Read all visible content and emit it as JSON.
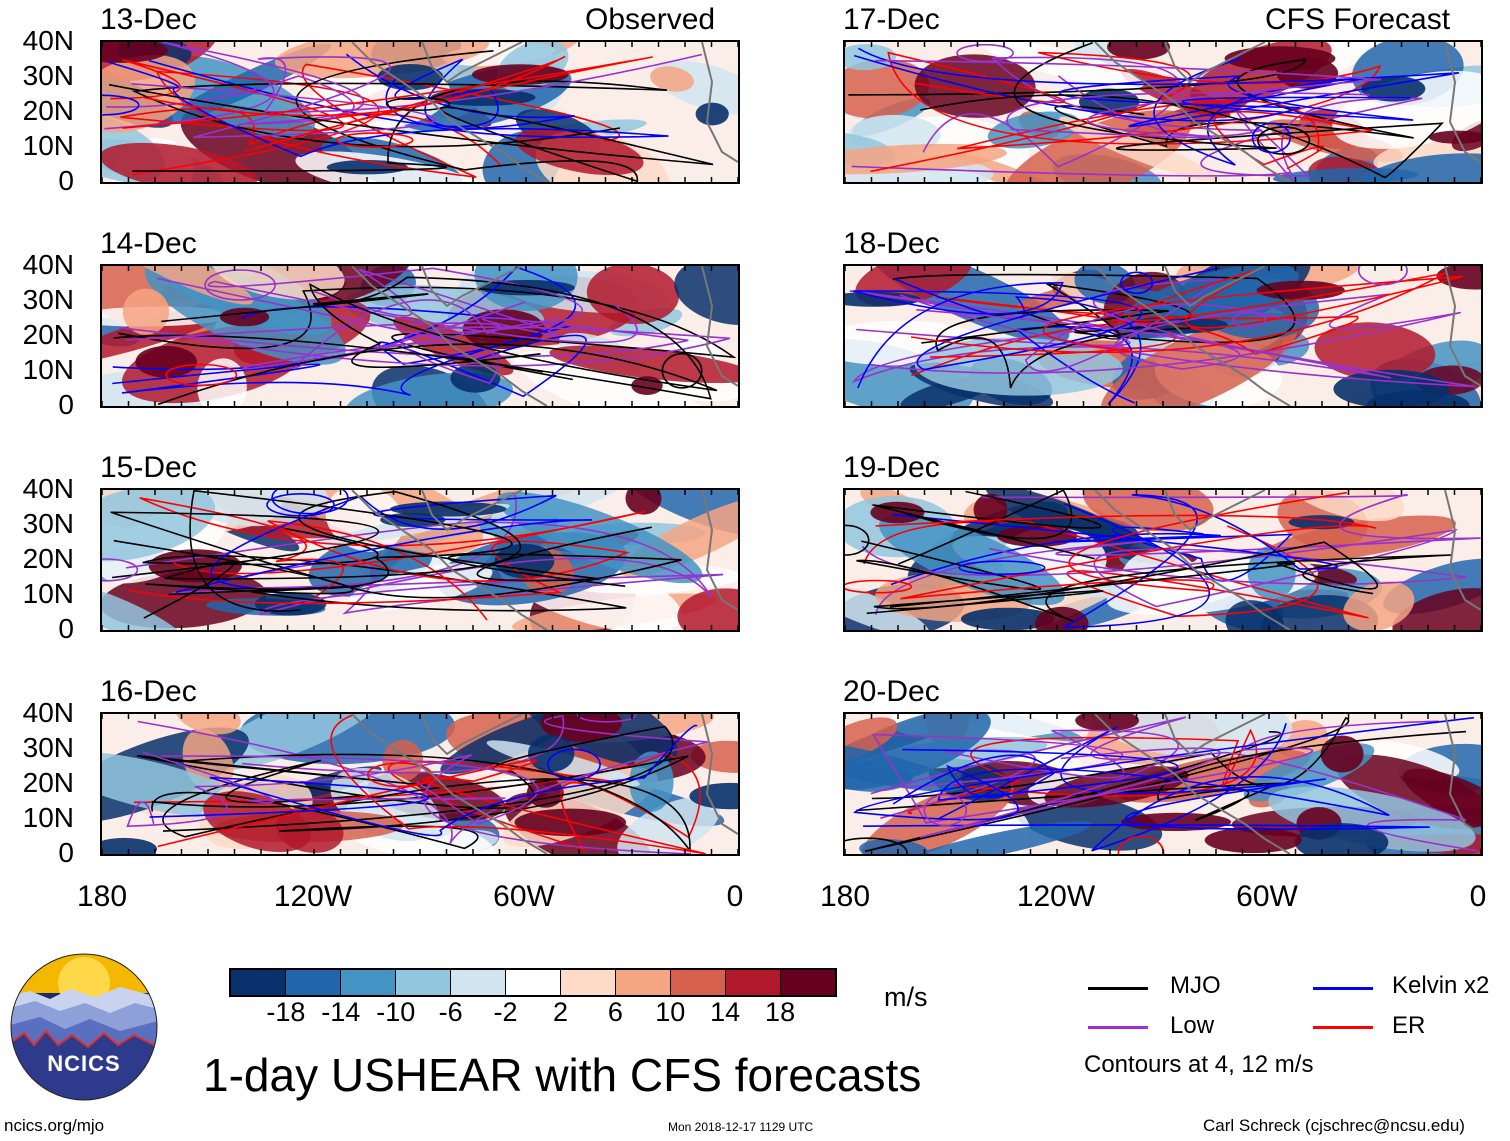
{
  "left_header_right": "Observed",
  "right_header_right": "CFS Forecast",
  "panels_left": [
    {
      "date": "13-Dec"
    },
    {
      "date": "14-Dec"
    },
    {
      "date": "15-Dec"
    },
    {
      "date": "16-Dec"
    }
  ],
  "panels_right": [
    {
      "date": "17-Dec"
    },
    {
      "date": "18-Dec"
    },
    {
      "date": "19-Dec"
    },
    {
      "date": "20-Dec"
    }
  ],
  "lat_labels": [
    "40N",
    "30N",
    "20N",
    "10N",
    "0"
  ],
  "lon_labels": [
    "180",
    "120W",
    "60W",
    "0"
  ],
  "colorbar": {
    "colors": [
      "#08306b",
      "#2166ac",
      "#4393c3",
      "#92c5de",
      "#d1e5f0",
      "#ffffff",
      "#fddbc7",
      "#f4a582",
      "#d6604d",
      "#b2182b",
      "#67001f"
    ],
    "labels": [
      "-18",
      "-14",
      "-10",
      "-6",
      "-2",
      "2",
      "6",
      "10",
      "14",
      "18"
    ],
    "unit": "m/s"
  },
  "legend": {
    "items": [
      {
        "name": "MJO",
        "color": "#000000"
      },
      {
        "name": "Kelvin x2",
        "color": "#0000ff"
      },
      {
        "name": "Low",
        "color": "#9932cc"
      },
      {
        "name": "ER",
        "color": "#ff0000"
      }
    ],
    "note": "Contours at 4, 12 m/s"
  },
  "title": "1-day USHEAR with CFS forecasts",
  "logo_text": "NCICS",
  "footer": {
    "left": "ncics.org/mjo",
    "center": "Mon 2018-12-17 1129 UTC",
    "right": "Carl Schreck (cjschrec@ncsu.edu)"
  }
}
